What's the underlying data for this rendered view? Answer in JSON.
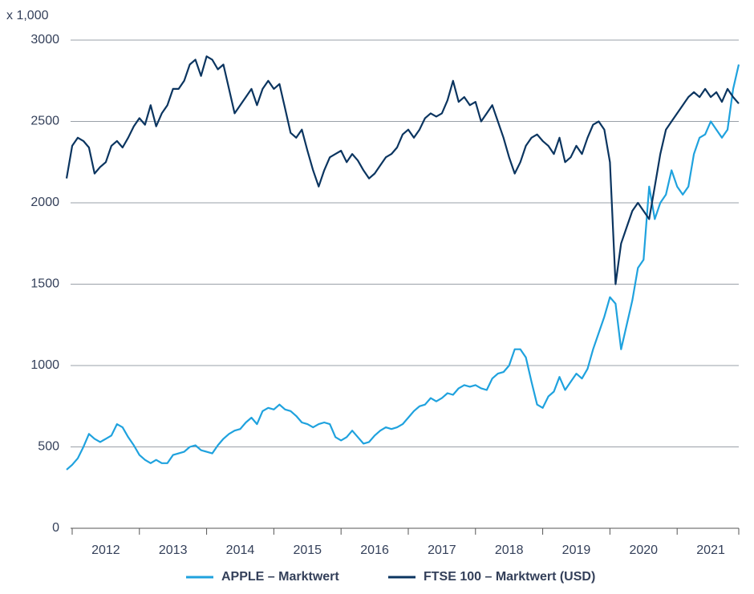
{
  "chart_data": {
    "type": "line",
    "y_unit_label": "x 1,000",
    "categories": [
      null,
      null,
      null,
      null,
      null,
      null,
      null,
      "2012",
      null,
      null,
      null,
      null,
      null,
      null,
      null,
      null,
      null,
      null,
      null,
      "2013",
      null,
      null,
      null,
      null,
      null,
      null,
      null,
      null,
      null,
      null,
      null,
      "2014",
      null,
      null,
      null,
      null,
      null,
      null,
      null,
      null,
      null,
      null,
      null,
      "2015",
      null,
      null,
      null,
      null,
      null,
      null,
      null,
      null,
      null,
      null,
      null,
      "2016",
      null,
      null,
      null,
      null,
      null,
      null,
      null,
      null,
      null,
      null,
      null,
      "2017",
      null,
      null,
      null,
      null,
      null,
      null,
      null,
      null,
      null,
      null,
      null,
      "2018",
      null,
      null,
      null,
      null,
      null,
      null,
      null,
      null,
      null,
      null,
      null,
      "2019",
      null,
      null,
      null,
      null,
      null,
      null,
      null,
      null,
      null,
      null,
      null,
      "2020",
      null,
      null,
      null,
      null,
      null,
      null,
      null,
      null,
      null,
      null,
      null,
      "2021",
      null,
      null,
      null,
      null,
      null
    ],
    "series": [
      {
        "name": "APPLE – Marktwert",
        "color": "#1fa2de",
        "values": [
          360,
          390,
          430,
          500,
          580,
          550,
          530,
          550,
          570,
          640,
          620,
          560,
          510,
          450,
          420,
          400,
          420,
          400,
          400,
          450,
          460,
          470,
          500,
          510,
          480,
          470,
          460,
          510,
          550,
          580,
          600,
          610,
          650,
          680,
          640,
          720,
          740,
          730,
          760,
          730,
          720,
          690,
          650,
          640,
          620,
          640,
          650,
          640,
          560,
          540,
          560,
          600,
          560,
          520,
          530,
          570,
          600,
          620,
          610,
          620,
          640,
          680,
          720,
          750,
          760,
          800,
          780,
          800,
          830,
          820,
          860,
          880,
          870,
          880,
          860,
          850,
          920,
          950,
          960,
          1000,
          1100,
          1100,
          1050,
          900,
          760,
          740,
          810,
          840,
          930,
          850,
          900,
          950,
          920,
          980,
          1100,
          1200,
          1300,
          1420,
          1380,
          1100,
          1250,
          1400,
          1600,
          1650,
          2100,
          1900,
          2000,
          2050,
          2200,
          2100,
          2050,
          2100,
          2300,
          2400,
          2420,
          2500,
          2450,
          2400,
          2450,
          2700,
          2850
        ]
      },
      {
        "name": "FTSE 100 – Marktwert (USD)",
        "color": "#0b3560",
        "values": [
          2150,
          2350,
          2400,
          2380,
          2340,
          2180,
          2220,
          2250,
          2350,
          2380,
          2340,
          2400,
          2470,
          2520,
          2480,
          2600,
          2470,
          2550,
          2600,
          2700,
          2700,
          2750,
          2850,
          2880,
          2780,
          2900,
          2880,
          2820,
          2850,
          2700,
          2550,
          2600,
          2650,
          2700,
          2600,
          2700,
          2750,
          2700,
          2730,
          2580,
          2430,
          2400,
          2450,
          2320,
          2200,
          2100,
          2200,
          2280,
          2300,
          2320,
          2250,
          2300,
          2260,
          2200,
          2150,
          2180,
          2230,
          2280,
          2300,
          2340,
          2420,
          2450,
          2400,
          2450,
          2520,
          2550,
          2530,
          2550,
          2630,
          2750,
          2620,
          2650,
          2600,
          2620,
          2500,
          2550,
          2600,
          2500,
          2400,
          2280,
          2180,
          2250,
          2350,
          2400,
          2420,
          2380,
          2350,
          2300,
          2400,
          2250,
          2280,
          2350,
          2300,
          2400,
          2480,
          2500,
          2450,
          2250,
          1500,
          1750,
          1850,
          1950,
          2000,
          1950,
          1900,
          2100,
          2300,
          2450,
          2500,
          2550,
          2600,
          2650,
          2680,
          2650,
          2700,
          2650,
          2680,
          2620,
          2700,
          2650,
          2610
        ]
      }
    ],
    "ylim": [
      0,
      3000
    ],
    "yticks": [
      0,
      500,
      1000,
      1500,
      2000,
      2500,
      3000
    ],
    "grid": true,
    "legend": "bottom"
  }
}
